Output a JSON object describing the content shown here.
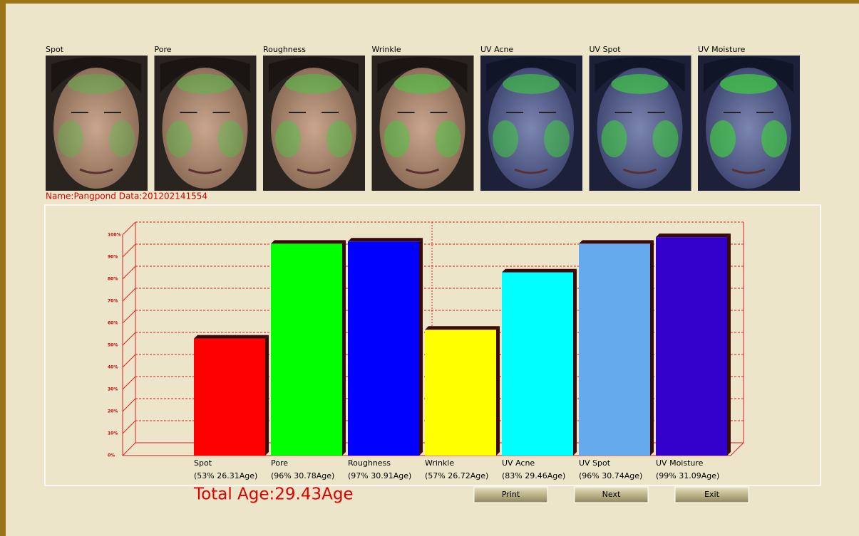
{
  "images": [
    {
      "label": "Spot"
    },
    {
      "label": "Pore"
    },
    {
      "label": "Roughness"
    },
    {
      "label": "Wrinkle"
    },
    {
      "label": "UV Acne"
    },
    {
      "label": "UV Spot"
    },
    {
      "label": "UV Moisture"
    }
  ],
  "name_line": "Name:Pangpond Data:201202141554",
  "chart_data": {
    "type": "bar",
    "categories": [
      "Spot",
      "Pore",
      "Roughness",
      "Wrinkle",
      "UV Acne",
      "UV Spot",
      "UV Moisture"
    ],
    "values": [
      53,
      96,
      97,
      57,
      83,
      96,
      99
    ],
    "value_labels": [
      "(53% 26.31Age)",
      "(96% 30.78Age)",
      "(97% 30.91Age)",
      "(57% 26.72Age)",
      "(83% 29.46Age)",
      "(96% 30.74Age)",
      "(99% 31.09Age)"
    ],
    "colors": [
      "#ff0000",
      "#00ff00",
      "#0000ff",
      "#ffff00",
      "#00ffff",
      "#66aaee",
      "#3300cc"
    ],
    "ylim": [
      0,
      100
    ],
    "yticks": [
      {
        "value": 0,
        "label": "0%"
      },
      {
        "value": 10,
        "label": "10%"
      },
      {
        "value": 20,
        "label": "20%"
      },
      {
        "value": 30,
        "label": "30%"
      },
      {
        "value": 40,
        "label": "40%"
      },
      {
        "value": 50,
        "label": "50%"
      },
      {
        "value": 60,
        "label": "60%"
      },
      {
        "value": 70,
        "label": "70%"
      },
      {
        "value": 80,
        "label": "80%"
      },
      {
        "value": 90,
        "label": "90%"
      },
      {
        "value": 100,
        "label": "100%"
      }
    ],
    "grid": true
  },
  "total_age": "Total Age:29.43Age",
  "buttons": [
    "Print",
    "Next",
    "Exit"
  ]
}
